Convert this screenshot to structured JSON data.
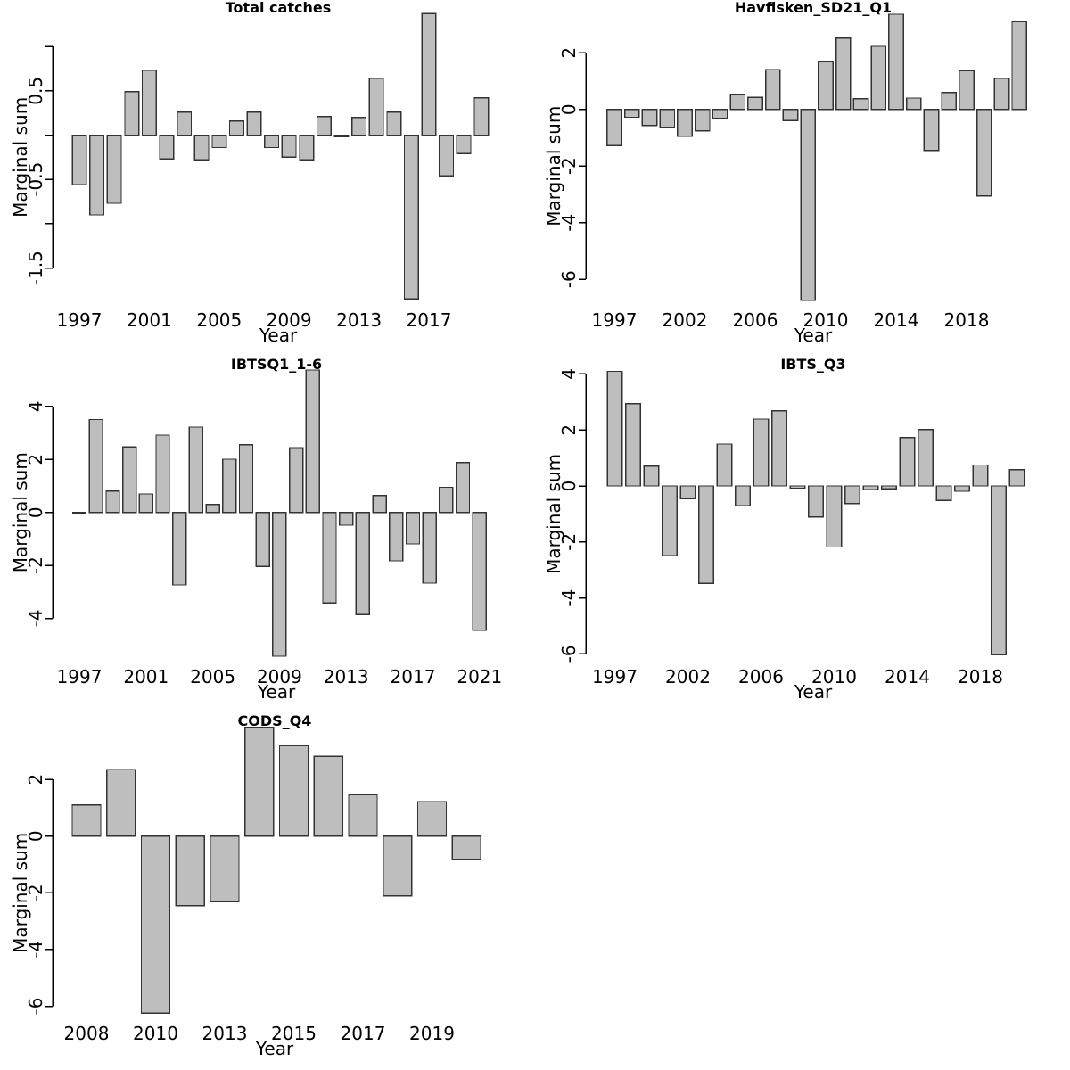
{
  "figure": {
    "background": "#ffffff",
    "bar_fill": "#bebebe",
    "bar_border": "#333333",
    "axis_color": "#000000",
    "text_color": "#000000"
  },
  "chart_data": [
    {
      "type": "bar",
      "title": "Total catches",
      "xlabel": "Year",
      "ylabel": "Marginal sum",
      "grid": false,
      "legend": null,
      "ylim": [
        -1.9,
        1.45
      ],
      "categories": [
        1997,
        1998,
        1999,
        2000,
        2001,
        2002,
        2003,
        2004,
        2005,
        2006,
        2007,
        2008,
        2009,
        2010,
        2011,
        2012,
        2013,
        2014,
        2015,
        2016,
        2017,
        2018,
        2019,
        2020
      ],
      "values": [
        -0.56,
        -0.9,
        -0.77,
        0.49,
        0.73,
        -0.27,
        0.26,
        -0.28,
        -0.14,
        0.16,
        0.26,
        -0.14,
        -0.25,
        -0.28,
        0.21,
        -0.02,
        0.2,
        0.64,
        0.26,
        -1.85,
        1.37,
        -0.46,
        -0.21,
        0.42
      ],
      "yticks": [
        {
          "v": 1.0,
          "label": ""
        },
        {
          "v": 0.5,
          "label": "0.5"
        },
        {
          "v": 0.0,
          "label": ""
        },
        {
          "v": -0.5,
          "label": "-0.5"
        },
        {
          "v": -1.0,
          "label": ""
        },
        {
          "v": -1.5,
          "label": "-1.5"
        }
      ],
      "xticks": [
        {
          "i": 0,
          "label": "1997"
        },
        {
          "i": 4,
          "label": "2001"
        },
        {
          "i": 8,
          "label": "2005"
        },
        {
          "i": 12,
          "label": "2009"
        },
        {
          "i": 16,
          "label": "2013"
        },
        {
          "i": 20,
          "label": "2017"
        }
      ]
    },
    {
      "type": "bar",
      "title": "Havfisken_SD21_Q1",
      "xlabel": "Year",
      "ylabel": "Marginal sum",
      "grid": false,
      "legend": null,
      "ylim": [
        -7.0,
        3.5
      ],
      "categories": [
        1997,
        1998,
        1999,
        2000,
        2002,
        2003,
        2004,
        2005,
        2006,
        2007,
        2008,
        2009,
        2010,
        2011,
        2012,
        2013,
        2014,
        2015,
        2016,
        2017,
        2018,
        2019,
        2020,
        2021
      ],
      "values": [
        -1.28,
        -0.28,
        -0.57,
        -0.63,
        -0.95,
        -0.76,
        -0.31,
        0.53,
        0.42,
        1.4,
        -0.4,
        -6.74,
        1.7,
        2.52,
        0.38,
        2.23,
        3.36,
        0.4,
        -1.45,
        0.6,
        1.37,
        -3.06,
        1.09,
        3.1
      ],
      "yticks": [
        {
          "v": 2,
          "label": "2"
        },
        {
          "v": 0,
          "label": "0"
        },
        {
          "v": -2,
          "label": "-2"
        },
        {
          "v": -4,
          "label": "-4"
        },
        {
          "v": -6,
          "label": "-6"
        }
      ],
      "xticks": [
        {
          "i": 0,
          "label": "1997"
        },
        {
          "i": 4,
          "label": "2002"
        },
        {
          "i": 8,
          "label": "2006"
        },
        {
          "i": 12,
          "label": "2010"
        },
        {
          "i": 16,
          "label": "2014"
        },
        {
          "i": 20,
          "label": "2018"
        }
      ]
    },
    {
      "type": "bar",
      "title": "IBTSQ1_1-6",
      "xlabel": "Year",
      "ylabel": "Marginal sum",
      "grid": false,
      "legend": null,
      "ylim": [
        -5.5,
        5.4
      ],
      "categories": [
        1997,
        1998,
        1999,
        2000,
        2001,
        2002,
        2003,
        2004,
        2005,
        2006,
        2007,
        2008,
        2009,
        2010,
        2011,
        2012,
        2013,
        2014,
        2015,
        2016,
        2017,
        2018,
        2019,
        2020,
        2021
      ],
      "values": [
        -0.04,
        3.51,
        0.81,
        2.47,
        0.7,
        2.92,
        -2.74,
        3.22,
        0.3,
        2.01,
        2.56,
        -2.04,
        -5.43,
        2.45,
        5.38,
        -3.42,
        -0.48,
        -3.86,
        0.64,
        -1.83,
        -1.19,
        -2.67,
        0.95,
        1.88,
        -4.45
      ],
      "yticks": [
        {
          "v": 4,
          "label": "4"
        },
        {
          "v": 2,
          "label": "2"
        },
        {
          "v": 0,
          "label": "0"
        },
        {
          "v": -2,
          "label": "-2"
        },
        {
          "v": -4,
          "label": "-4"
        }
      ],
      "xticks": [
        {
          "i": 0,
          "label": "1997"
        },
        {
          "i": 4,
          "label": "2001"
        },
        {
          "i": 8,
          "label": "2005"
        },
        {
          "i": 12,
          "label": "2009"
        },
        {
          "i": 16,
          "label": "2013"
        },
        {
          "i": 20,
          "label": "2017"
        },
        {
          "i": 24,
          "label": "2021"
        }
      ]
    },
    {
      "type": "bar",
      "title": "IBTS_Q3",
      "xlabel": "Year",
      "ylabel": "Marginal sum",
      "grid": false,
      "legend": null,
      "ylim": [
        -6.1,
        4.1
      ],
      "categories": [
        1997,
        1998,
        1999,
        2000,
        2002,
        2003,
        2004,
        2005,
        2006,
        2007,
        2008,
        2009,
        2010,
        2011,
        2012,
        2013,
        2014,
        2015,
        2016,
        2017,
        2018,
        2019,
        2020
      ],
      "values": [
        4.09,
        2.94,
        0.71,
        -2.49,
        -0.45,
        -3.48,
        1.5,
        -0.71,
        2.39,
        2.68,
        -0.08,
        -1.11,
        -2.18,
        -0.63,
        -0.13,
        -0.1,
        1.73,
        2.01,
        -0.52,
        -0.19,
        0.75,
        -6.03,
        0.58
      ],
      "yticks": [
        {
          "v": 4,
          "label": "4"
        },
        {
          "v": 2,
          "label": "2"
        },
        {
          "v": 0,
          "label": "0"
        },
        {
          "v": -2,
          "label": "-2"
        },
        {
          "v": -4,
          "label": "-4"
        },
        {
          "v": -6,
          "label": "-6"
        }
      ],
      "xticks": [
        {
          "i": 0,
          "label": "1997"
        },
        {
          "i": 4,
          "label": "2002"
        },
        {
          "i": 8,
          "label": "2006"
        },
        {
          "i": 12,
          "label": "2010"
        },
        {
          "i": 16,
          "label": "2014"
        },
        {
          "i": 20,
          "label": "2018"
        }
      ]
    },
    {
      "type": "bar",
      "title": "CODS_Q4",
      "xlabel": "Year",
      "ylabel": "Marginal sum",
      "grid": false,
      "legend": null,
      "ylim": [
        -6.3,
        3.9
      ],
      "categories": [
        2008,
        2009,
        2010,
        2011,
        2013,
        2014,
        2015,
        2016,
        2017,
        2018,
        2019,
        2020
      ],
      "values": [
        1.1,
        2.34,
        -6.24,
        -2.45,
        -2.31,
        3.84,
        3.18,
        2.81,
        1.45,
        -2.11,
        1.22,
        -0.81
      ],
      "yticks": [
        {
          "v": 2,
          "label": "2"
        },
        {
          "v": 0,
          "label": "0"
        },
        {
          "v": -2,
          "label": "-2"
        },
        {
          "v": -4,
          "label": "-4"
        },
        {
          "v": -6,
          "label": "-6"
        }
      ],
      "xticks": [
        {
          "i": 0,
          "label": "2008"
        },
        {
          "i": 2,
          "label": "2010"
        },
        {
          "i": 4,
          "label": "2013"
        },
        {
          "i": 6,
          "label": "2015"
        },
        {
          "i": 8,
          "label": "2017"
        },
        {
          "i": 10,
          "label": "2019"
        }
      ]
    }
  ]
}
